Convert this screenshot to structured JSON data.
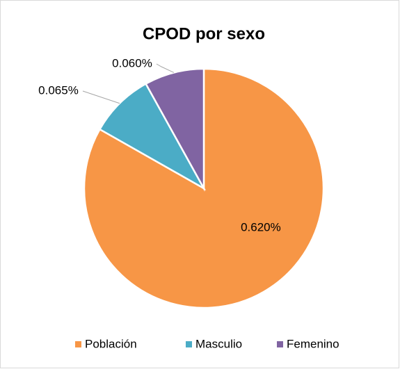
{
  "chart_data": {
    "type": "pie",
    "title": "CPOD por sexo",
    "categories": [
      "Población",
      "Masculio",
      "Femenino"
    ],
    "values": [
      0.62,
      0.065,
      0.06
    ],
    "value_labels": [
      "0.620%",
      "0.065%",
      "0.060%"
    ],
    "colors": [
      "#f79646",
      "#4bacc6",
      "#8064a2"
    ],
    "legend": "bottom"
  }
}
